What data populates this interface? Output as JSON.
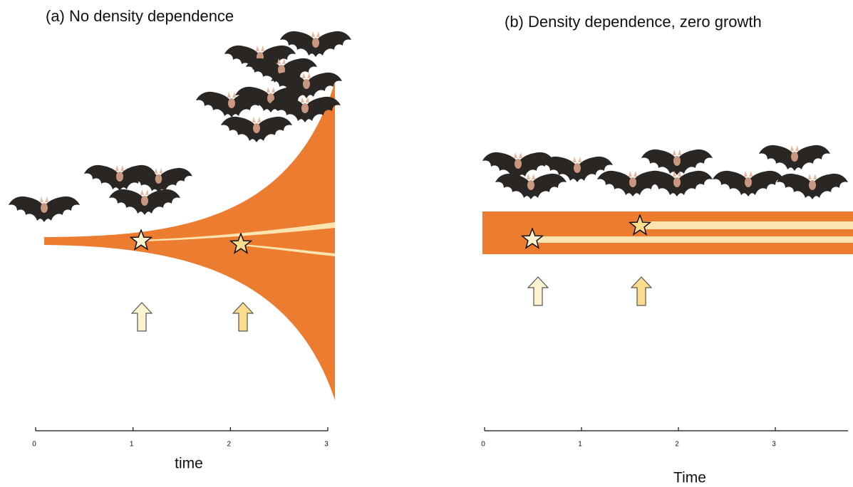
{
  "panels": [
    {
      "title": "(a) No density dependence",
      "xlabel": "time",
      "xlim": [
        0,
        3
      ],
      "xticks": [
        0,
        1,
        2,
        3
      ]
    },
    {
      "title": "(b) Density dependence, zero growth",
      "xlabel": "Time",
      "xlim": [
        0,
        3.75
      ],
      "xticks": [
        0,
        1,
        2,
        3
      ]
    }
  ]
}
